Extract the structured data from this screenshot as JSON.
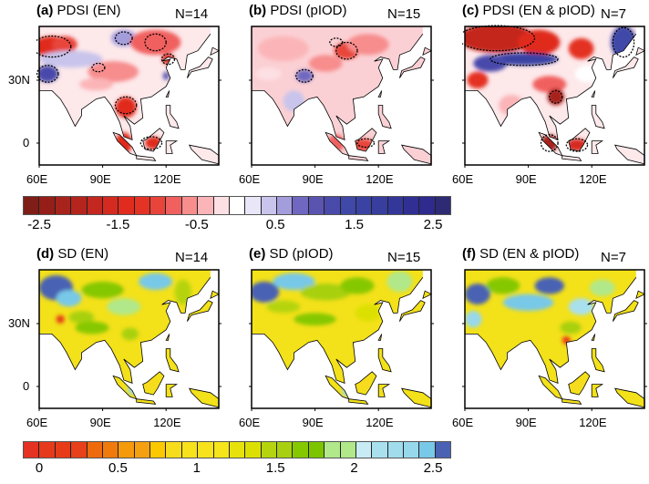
{
  "panels": [
    {
      "letter": "(a)",
      "title": "PDSI (EN)",
      "n": "N=14",
      "kind": "pdsi"
    },
    {
      "letter": "(b)",
      "title": "PDSI (pIOD)",
      "n": "N=15",
      "kind": "pdsi"
    },
    {
      "letter": "(c)",
      "title": "PDSI (EN & pIOD)",
      "n": "N=7",
      "kind": "pdsi"
    },
    {
      "letter": "(d)",
      "title": "SD (EN)",
      "n": "N=14",
      "kind": "sd"
    },
    {
      "letter": "(e)",
      "title": "SD (pIOD)",
      "n": "N=15",
      "kind": "sd"
    },
    {
      "letter": "(f)",
      "title": "SD (EN & pIOD)",
      "n": "N=7",
      "kind": "sd"
    }
  ],
  "lon_ticks": [
    "60E",
    "90E",
    "120E"
  ],
  "lat_ticks": [
    "30N",
    "0"
  ],
  "colorbar_pdsi": {
    "labels": [
      "-2.5",
      "-1.5",
      "-0.5",
      "0.5",
      "1.5",
      "2.5"
    ],
    "colors": [
      "#7f1d17",
      "#951f18",
      "#a8231c",
      "#b5241d",
      "#c4271f",
      "#d52a20",
      "#e02b1e",
      "#e43324",
      "#e8443a",
      "#f0605f",
      "#f78d8d",
      "#fbb5b8",
      "#fde0e4",
      "#ffffff",
      "#e8e6f7",
      "#c8c4ec",
      "#a39ddc",
      "#7068c0",
      "#5a54b0",
      "#4a4aab",
      "#4048a8",
      "#3a43a3",
      "#373e9e",
      "#34379a",
      "#312f94",
      "#2e2a8e",
      "#2f2a74"
    ]
  },
  "colorbar_sd": {
    "labels": [
      "0",
      "0.5",
      "1",
      "1.5",
      "2",
      "2.5"
    ],
    "colors": [
      "#e53222",
      "#e63a1c",
      "#e63c18",
      "#e7401a",
      "#ef6a0c",
      "#f07a0c",
      "#f59a0a",
      "#f5a010",
      "#fcc800",
      "#f6dc1a",
      "#f7e21c",
      "#f7e21c",
      "#f5e51a",
      "#e8e20c",
      "#dce000",
      "#b6d40e",
      "#a8d010",
      "#86c800",
      "#7cc400",
      "#b0e88a",
      "#b0e88a",
      "#c8ecf4",
      "#a8e0ee",
      "#a0dcec",
      "#98d8ec",
      "#78c8e8",
      "#4a62b4"
    ]
  }
}
